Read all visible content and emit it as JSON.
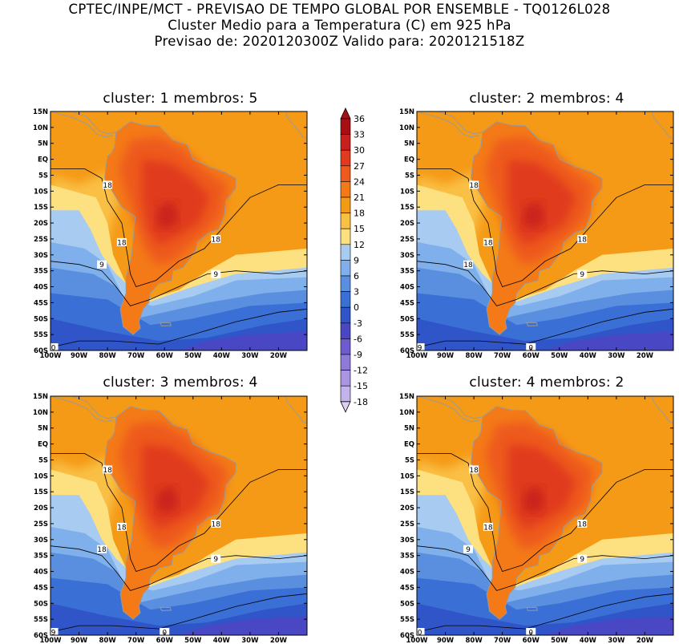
{
  "header": {
    "line1": "CPTEC/INPE/MCT - PREVISAO DE TEMPO GLOBAL POR ENSEMBLE - TQ0126L028",
    "line2": "Cluster Medio para a Temperatura (C) em 925 hPa",
    "line3": "Previsao de: 2020120300Z   Valido para: 2020121518Z"
  },
  "axes": {
    "lat_labels": [
      "15N",
      "10N",
      "5N",
      "EQ",
      "5S",
      "10S",
      "15S",
      "20S",
      "25S",
      "30S",
      "35S",
      "40S",
      "45S",
      "50S",
      "55S",
      "60S"
    ],
    "lon_labels": [
      "100W",
      "90W",
      "80W",
      "70W",
      "60W",
      "50W",
      "40W",
      "30W",
      "20W"
    ],
    "lon_range": [
      -100,
      -10
    ],
    "lat_range": [
      -60,
      15
    ]
  },
  "colorbar": {
    "levels": [
      "36",
      "33",
      "30",
      "27",
      "24",
      "21",
      "18",
      "15",
      "12",
      "9",
      "6",
      "3",
      "0",
      "-3",
      "-6",
      "-9",
      "-12",
      "-15",
      "-18"
    ],
    "colors": [
      "#a50f15",
      "#c8201e",
      "#e03a1f",
      "#ee5a1e",
      "#f47a18",
      "#f59a17",
      "#f9c044",
      "#fde07f",
      "#a8cbf2",
      "#7fb0ec",
      "#5a8fe0",
      "#3a6fd6",
      "#2f55c8",
      "#4a47c4",
      "#6c5cd0",
      "#8e7ad9",
      "#a995e2",
      "#c4b3ea",
      "#ddd0f2"
    ]
  },
  "panels": [
    {
      "title": "cluster: 1   membros: 5",
      "contour_labels": [
        "18",
        "18",
        "18",
        "9",
        "9",
        "0"
      ]
    },
    {
      "title": "cluster: 2   membros: 4",
      "contour_labels": [
        "18",
        "18",
        "18",
        "18",
        "9",
        "9",
        "0"
      ]
    },
    {
      "title": "cluster: 3   membros: 4",
      "contour_labels": [
        "18",
        "18",
        "18",
        "18",
        "9",
        "9",
        "0"
      ]
    },
    {
      "title": "cluster: 4   membros: 2",
      "contour_labels": [
        "18",
        "18",
        "18",
        "9",
        "9",
        "0",
        "0"
      ]
    }
  ]
}
